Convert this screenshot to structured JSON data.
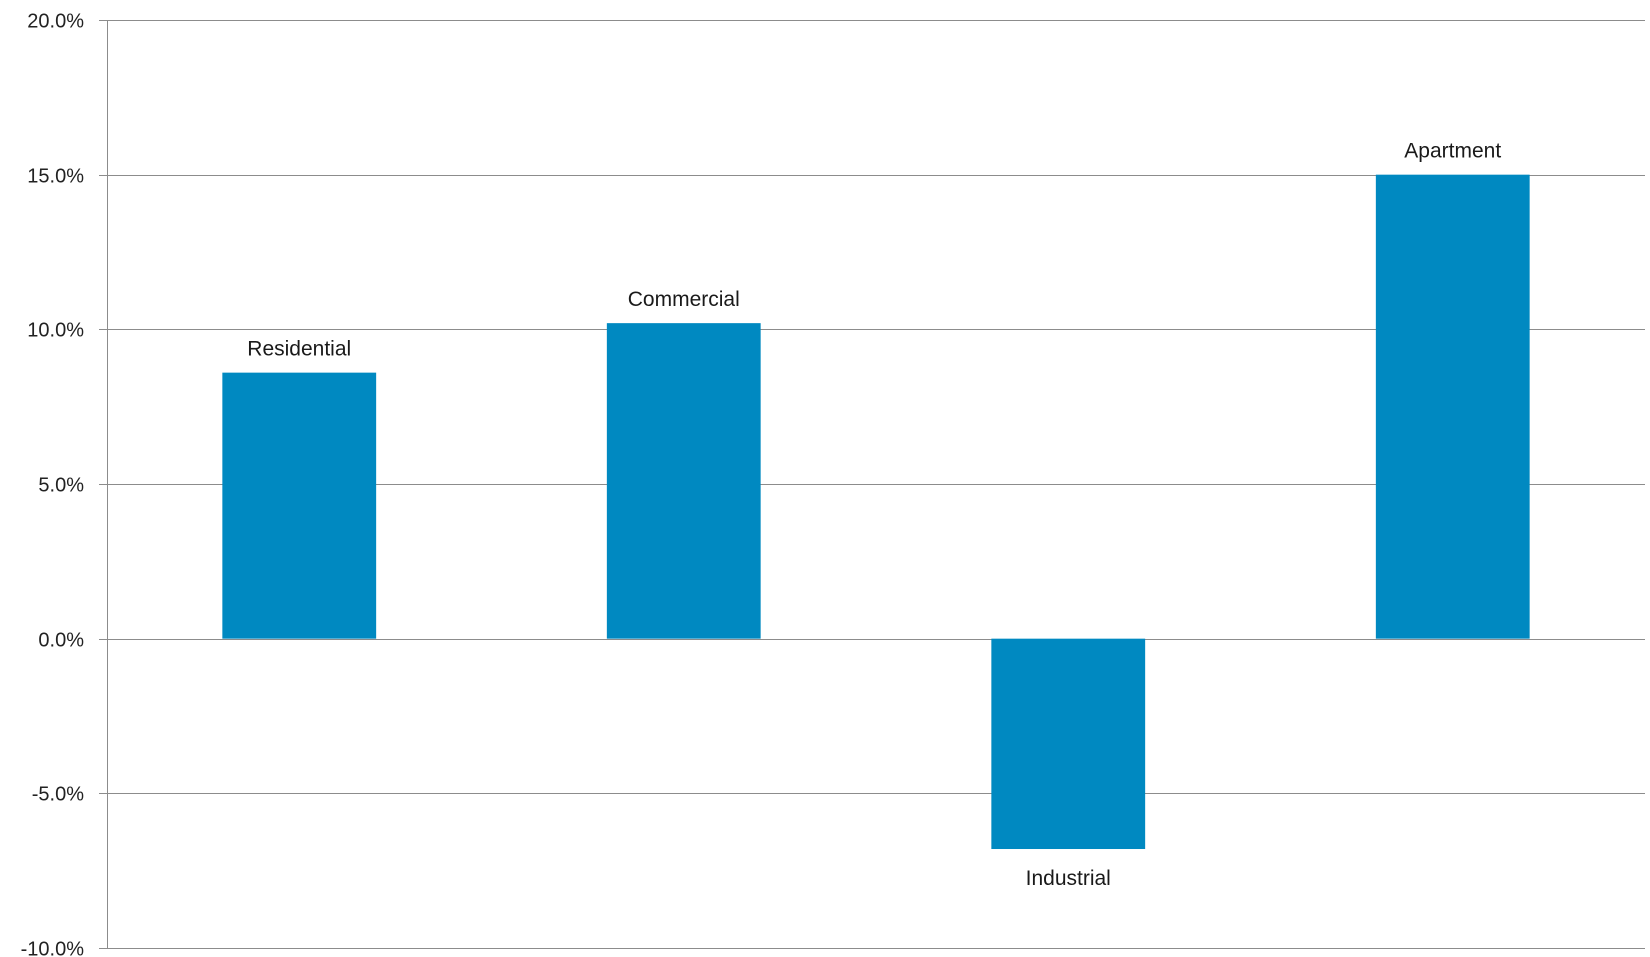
{
  "chart_data": {
    "type": "bar",
    "categories": [
      "Residential",
      "Commercial",
      "Industrial",
      "Apartment"
    ],
    "values": [
      8.6,
      10.2,
      -6.8,
      15.0
    ],
    "value_unit": "%",
    "ylim": [
      -10,
      20
    ],
    "y_ticks": [
      -10,
      -5,
      0,
      5,
      10,
      15,
      20
    ],
    "y_tick_labels": [
      "-10.0%",
      "-5.0%",
      "0.0%",
      "5.0%",
      "10.0%",
      "15.0%",
      "20.0%"
    ],
    "title": "",
    "xlabel": "",
    "ylabel": "",
    "grid": true,
    "legend": "none",
    "category_labels_position": "at bar ends",
    "bar_color": "#0089C1",
    "grid_color": "#8C8C8C"
  }
}
